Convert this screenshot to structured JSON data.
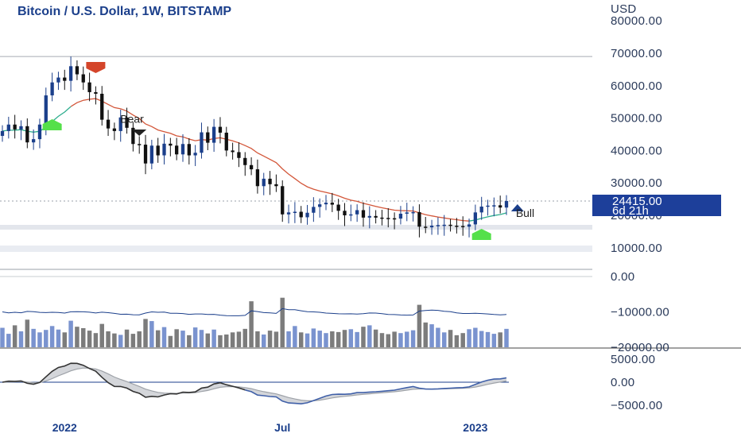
{
  "chart_data": {
    "type": "candlestick",
    "title": "Bitcoin / U.S. Dollar, 1W, BITSTAMP",
    "currency": "USD",
    "x_tick_labels": [
      "2022",
      "Jul",
      "2023"
    ],
    "y_ticks_price": [
      "80000.00",
      "70000.00",
      "60000.00",
      "50000.00",
      "40000.00",
      "30000.00",
      "20000.00",
      "10000.00"
    ],
    "y_ticks_volume": [
      "0.00",
      "−10000.00",
      "−20000.00"
    ],
    "y_ticks_macd": [
      "5000.00",
      "0.00",
      "−5000.00"
    ],
    "last_price": "24415.00",
    "countdown": "6d 21h",
    "annotations": [
      {
        "label": "Bear",
        "x": 22,
        "y": 48500
      },
      {
        "label": "Bull",
        "x": 82,
        "y": 19500
      }
    ],
    "horizontal_levels": [
      69000,
      24415
    ],
    "weekly_close": [
      46000,
      48000,
      46500,
      47500,
      42500,
      43500,
      48000,
      57000,
      61000,
      62500,
      61500,
      66000,
      63500,
      61000,
      58000,
      57500,
      49500,
      46800,
      46000,
      50200,
      47000,
      42000,
      41800,
      36000,
      41500,
      38500,
      42100,
      41500,
      38800,
      42000,
      38500,
      39300,
      45600,
      42400,
      47300,
      45500,
      40000,
      39500,
      37700,
      35500,
      34200,
      29000,
      31300,
      29600,
      29000,
      20300,
      20900,
      21100,
      19400,
      20800,
      22600,
      23400,
      23900,
      23300,
      21400,
      20000,
      20300,
      21600,
      19300,
      19800,
      19300,
      19200,
      19100,
      19000,
      20500,
      20900,
      21000,
      16500,
      16300,
      16800,
      17000,
      17100,
      16800,
      16700,
      16500,
      17200,
      20900,
      22700,
      23000,
      23100,
      22400,
      24415
    ],
    "volume": [
      -14500,
      -16200,
      -13800,
      -15500,
      -12200,
      -14800,
      -15800,
      -15100,
      -14000,
      -15000,
      -15800,
      -12500,
      -14200,
      -14600,
      -15300,
      -16000,
      -13400,
      -15500,
      -16100,
      -16500,
      -15000,
      -16200,
      -15500,
      -12000,
      -12600,
      -15200,
      -14300,
      -16800,
      -14900,
      -15300,
      -16600,
      -14400,
      -15100,
      -16100,
      -15000,
      -16600,
      -16400,
      -15800,
      -15600,
      -14800,
      -7000,
      -15500,
      -16400,
      -15300,
      -15600,
      -6000,
      -15500,
      -14000,
      -15800,
      -16100,
      -14700,
      -15300,
      -16000,
      -15500,
      -15700,
      -15100,
      -14900,
      -15700,
      -14200,
      -13800,
      -15000,
      -16000,
      -16300,
      -15600,
      -16000,
      -15600,
      -15200,
      -8000,
      -13000,
      -13500,
      -14500,
      -15800,
      -15100,
      -16600,
      -16000,
      -14900,
      -14500,
      -15400,
      -15700,
      -16200,
      -15800,
      -14800
    ]
  }
}
